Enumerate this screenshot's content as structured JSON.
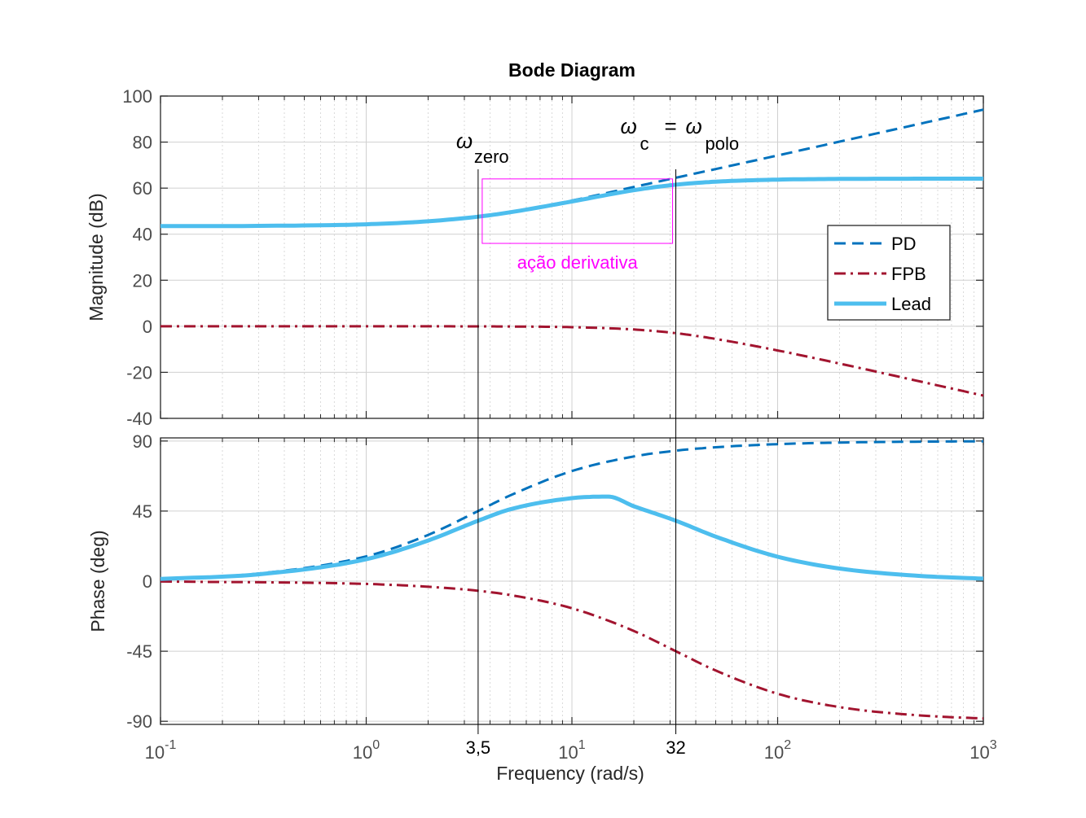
{
  "chart_data": {
    "type": "line",
    "title": "Bode Diagram",
    "xlabel": "Frequency  (rad/s)",
    "xscale": "log",
    "xlim": [
      0.1,
      1000
    ],
    "x_ticks": [
      {
        "base": "10",
        "exp": "-1"
      },
      {
        "base": "10",
        "exp": "0"
      },
      {
        "base": "10",
        "exp": "1"
      },
      {
        "base": "10",
        "exp": "2"
      },
      {
        "base": "10",
        "exp": "3"
      }
    ],
    "extra_x_ticks": [
      {
        "value": 3.5,
        "label": "3,5"
      },
      {
        "value": 32,
        "label": "32"
      }
    ],
    "grid": true,
    "legend": {
      "placement": "right",
      "entries": [
        {
          "name": "PD",
          "color": "#0072BD",
          "style": "dashed"
        },
        {
          "name": "FPB",
          "color": "#A2142F",
          "style": "dash-dot"
        },
        {
          "name": "Lead",
          "color": "#4DBEEE",
          "style": "solid"
        }
      ]
    },
    "panels": [
      {
        "id": "magnitude",
        "ylabel": "Magnitude (dB)",
        "ylim": [
          -40,
          100
        ],
        "yticks": [
          -40,
          -20,
          0,
          20,
          40,
          60,
          80,
          100
        ],
        "series": [
          {
            "name": "PD",
            "x": [
              0.1,
              0.3,
              1,
              2,
              3.5,
              5,
              10,
              20,
              32,
              50,
              100,
              200,
              500,
              1000
            ],
            "y": [
              43.5,
              43.6,
              44.3,
              45.6,
              47.6,
              49.6,
              54.6,
              60.5,
              64.5,
              68.3,
              74.2,
              80.2,
              88.1,
              94.1
            ]
          },
          {
            "name": "FPB",
            "x": [
              0.1,
              1,
              3.5,
              5,
              10,
              20,
              32,
              50,
              100,
              200,
              500,
              1000
            ],
            "y": [
              0,
              0,
              -0.05,
              -0.1,
              -0.4,
              -1.4,
              -3.0,
              -5.5,
              -10.5,
              -16.2,
              -24.1,
              -30.1
            ]
          },
          {
            "name": "Lead",
            "x": [
              0.1,
              0.3,
              1,
              2,
              3.5,
              5,
              10,
              20,
              32,
              50,
              100,
              200,
              500,
              1000
            ],
            "y": [
              43.5,
              43.6,
              44.3,
              45.6,
              47.6,
              49.5,
              54.2,
              59.1,
              61.5,
              62.8,
              63.7,
              64.0,
              64.1,
              64.1
            ]
          }
        ]
      },
      {
        "id": "phase",
        "ylabel": "Phase (deg)",
        "ylim": [
          -92,
          92
        ],
        "yticks": [
          -90,
          -45,
          0,
          45,
          90
        ],
        "series": [
          {
            "name": "PD",
            "x": [
              0.1,
              0.3,
              1,
              2,
              3.5,
              5,
              10,
              20,
              32,
              50,
              100,
              200,
              500,
              1000
            ],
            "y": [
              1.6,
              4.9,
              15.9,
              29.7,
              45.0,
              55.0,
              70.7,
              80.1,
              83.8,
              86.0,
              88.0,
              89.0,
              89.6,
              89.8
            ]
          },
          {
            "name": "FPB",
            "x": [
              0.1,
              1,
              2,
              3.5,
              5,
              10,
              20,
              32,
              50,
              100,
              200,
              500,
              1000
            ],
            "y": [
              -0.2,
              -1.8,
              -3.6,
              -6.2,
              -8.9,
              -17.4,
              -32.0,
              -45.0,
              -57.4,
              -72.3,
              -80.9,
              -86.3,
              -88.2
            ]
          },
          {
            "name": "Lead",
            "x": [
              0.1,
              0.3,
              1,
              2,
              3.5,
              5,
              10,
              15,
              20,
              32,
              50,
              100,
              200,
              500,
              1000
            ],
            "y": [
              1.4,
              4.4,
              14.1,
              26.1,
              38.8,
              46.1,
              53.3,
              54.3,
              48.1,
              38.8,
              28.6,
              15.7,
              8.1,
              3.3,
              1.6
            ]
          }
        ]
      }
    ],
    "annotations": {
      "omega_zero": {
        "symbol": "ω",
        "subscript": "zero",
        "x": 3.5
      },
      "omega_c": {
        "symbol": "ω",
        "subscript_c": "c",
        "equals": "=",
        "symbol2": "ω",
        "subscript_polo": "polo",
        "x": 32
      },
      "derivative_box": {
        "label": "ação derivativa",
        "x_range": [
          3.5,
          32
        ],
        "y_range": [
          36,
          64
        ],
        "color": "#FF00FF"
      }
    }
  }
}
